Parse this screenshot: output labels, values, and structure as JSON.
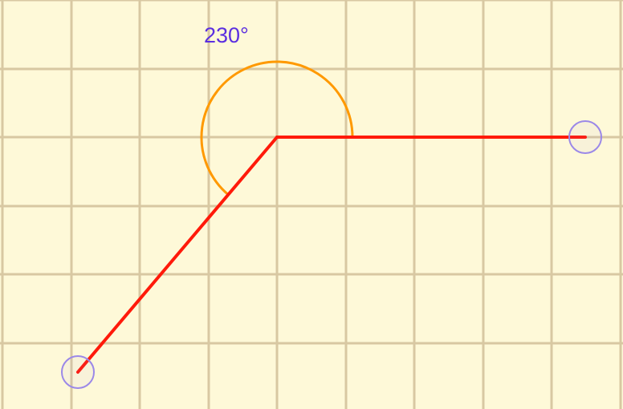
{
  "angle": {
    "label": "230°",
    "degrees": 230
  },
  "colors": {
    "background": "#fef9d8",
    "grid": "#d8c8a2",
    "arm": "#ff1a0a",
    "arc": "#ff9900",
    "handle": "#9b88e8",
    "label": "#5b2fe0"
  }
}
